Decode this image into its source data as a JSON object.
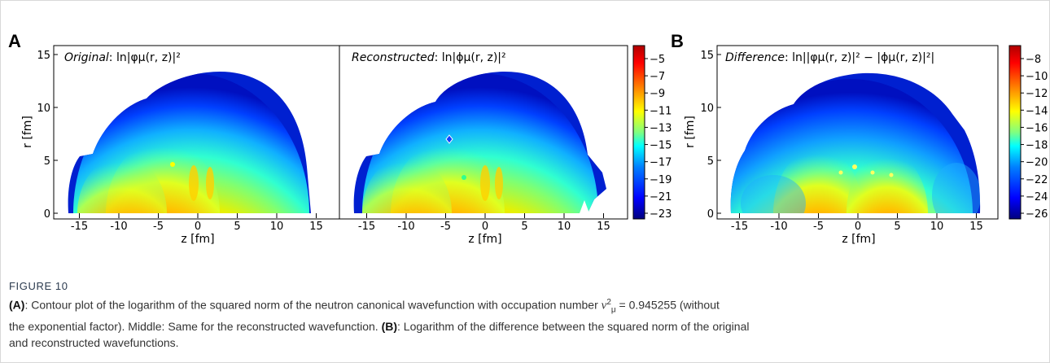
{
  "figure": {
    "panel_letters": [
      "A",
      "B"
    ],
    "panels": [
      {
        "title_italic": "Original",
        "title_formula": ": ln|φμ(r, z)|²",
        "xlabel": "z [fm]",
        "ylabel": "r [fm]",
        "xticks": [
          "-15",
          "-10",
          "-5",
          "0",
          "5",
          "10",
          "15"
        ],
        "yticks": [
          "0",
          "5",
          "10",
          "15"
        ]
      },
      {
        "title_italic": "Reconstructed",
        "title_formula": ": ln|ϕμ(r, z)|²",
        "xlabel": "z [fm]",
        "xticks": [
          "-15",
          "-10",
          "-5",
          "0",
          "5",
          "10",
          "15"
        ]
      },
      {
        "title_italic": "Difference",
        "title_formula": ": ln||φμ(r, z)|² − |ϕμ(r, z)|²|",
        "xlabel": "z [fm]",
        "ylabel": "r [fm]",
        "xticks": [
          "-15",
          "-10",
          "-5",
          "0",
          "5",
          "10",
          "15"
        ],
        "yticks": [
          "0",
          "5",
          "10",
          "15"
        ]
      }
    ],
    "colorbar_ab": [
      "−5",
      "−7",
      "−9",
      "−11",
      "−13",
      "−15",
      "−17",
      "−19",
      "−21",
      "−23"
    ],
    "colorbar_b": [
      "−8",
      "−10",
      "−12",
      "−14",
      "−16",
      "−18",
      "−20",
      "−22",
      "−24",
      "−26"
    ],
    "colormap": [
      "#00007f",
      "#0000ff",
      "#0080ff",
      "#00ffff",
      "#80ff80",
      "#ffff00",
      "#ff8000",
      "#ff0000",
      "#7f0000"
    ]
  },
  "caption": {
    "label": "FIGURE 10",
    "a_tag": "(A)",
    "a_text": ": Contour plot of the logarithm of the squared norm of the neutron canonical wavefunction with occupation number",
    "v_symbol": "v",
    "v_sup": "2",
    "v_sub": "μ",
    "occ_value": " = 0.945255 (without",
    "line2": "the exponential factor). Middle: Same for the reconstructed wavefunction.",
    "b_tag": "(B)",
    "b_text": ": Logarithm of the difference between the squared norm of the original",
    "line3": "and reconstructed wavefunctions."
  }
}
